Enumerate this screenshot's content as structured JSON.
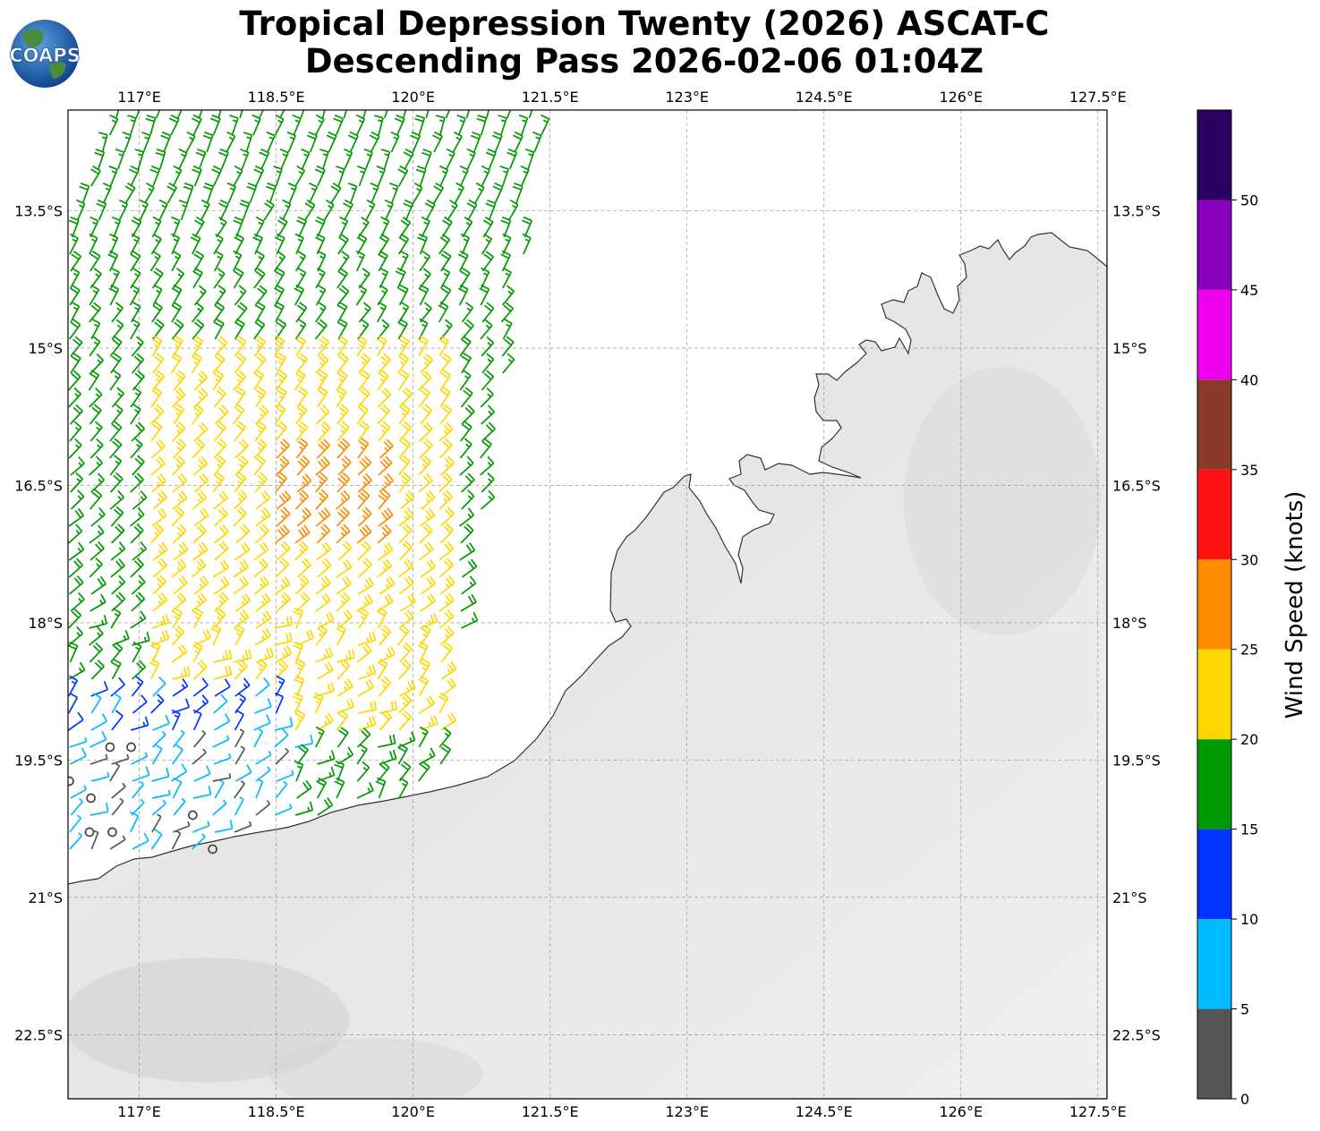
{
  "title_line1": "Tropical Depression Twenty (2026) ASCAT-C",
  "title_line2": "Descending Pass 2026-02-06 01:04Z",
  "logo_text": "COAPS",
  "lon_ticks": [
    "117°E",
    "118.5°E",
    "120°E",
    "121.5°E",
    "123°E",
    "124.5°E",
    "126°E",
    "127.5°E"
  ],
  "lat_ticks": [
    "13.5°S",
    "15°S",
    "16.5°S",
    "18°S",
    "19.5°S",
    "21°S",
    "22.5°S"
  ],
  "map_extent": {
    "lon_min": 116.22,
    "lon_max": 127.6,
    "lat_min": -23.2,
    "lat_max": -12.4
  },
  "colorbar": {
    "label": "Wind Speed (knots)",
    "tick_labels": [
      "0",
      "5",
      "10",
      "15",
      "20",
      "25",
      "30",
      "35",
      "40",
      "45",
      "50"
    ],
    "bins": [
      {
        "min": 0,
        "max": 5,
        "color": "#555555"
      },
      {
        "min": 5,
        "max": 10,
        "color": "#00bbff"
      },
      {
        "min": 10,
        "max": 15,
        "color": "#0033ff"
      },
      {
        "min": 15,
        "max": 20,
        "color": "#009900"
      },
      {
        "min": 20,
        "max": 25,
        "color": "#ffd700"
      },
      {
        "min": 25,
        "max": 30,
        "color": "#ff8c00"
      },
      {
        "min": 30,
        "max": 35,
        "color": "#ff1111"
      },
      {
        "min": 35,
        "max": 40,
        "color": "#8b3a2a"
      },
      {
        "min": 40,
        "max": 45,
        "color": "#ee00ee"
      },
      {
        "min": 45,
        "max": 50,
        "color": "#8800bb"
      },
      {
        "min": 50,
        "max": 55,
        "color": "#2a0060"
      }
    ]
  }
}
